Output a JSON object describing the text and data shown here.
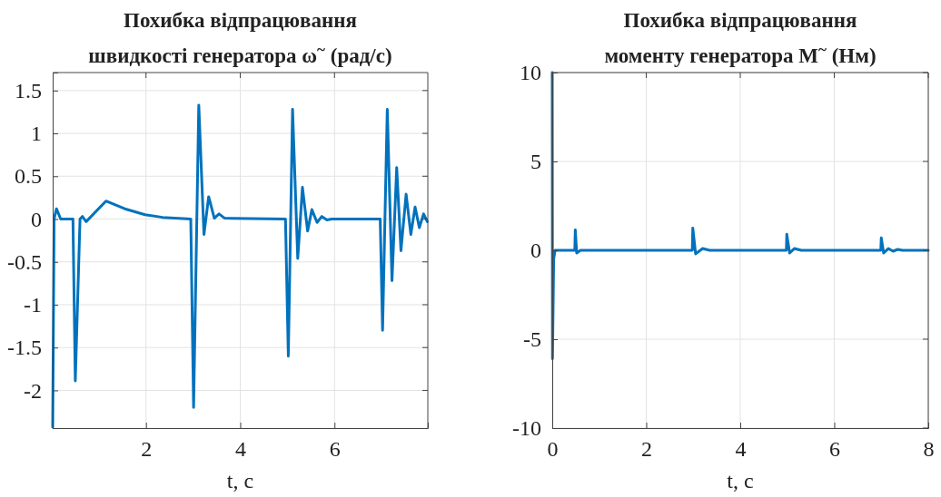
{
  "chart_data": [
    {
      "type": "line",
      "title": "Похибка відпрацювання\nшвидкості генератора ω$^{~}$ (рад/с)",
      "xlabel": "t, c",
      "xlim": [
        0.02,
        7.98
      ],
      "ylim": [
        -2.44,
        1.71
      ],
      "xticks": [
        2,
        4,
        6
      ],
      "yticks": [
        -2,
        -1.5,
        -1,
        -0.5,
        0,
        0.5,
        1,
        1.5
      ],
      "grid": true,
      "series": [
        {
          "color": "#0072bd",
          "x": [
            0.02,
            0.05,
            0.1,
            0.19,
            0.45,
            0.5,
            0.6,
            0.65,
            0.73,
            1.15,
            1.55,
            1.98,
            2.35,
            2.95,
            3.01,
            3.12,
            3.23,
            3.33,
            3.45,
            3.55,
            3.67,
            4.96,
            5.02,
            5.11,
            5.22,
            5.32,
            5.43,
            5.52,
            5.63,
            5.73,
            5.84,
            5.94,
            6.97,
            7.02,
            7.12,
            7.22,
            7.32,
            7.41,
            7.52,
            7.62,
            7.71,
            7.8,
            7.89,
            7.97
          ],
          "values": [
            -2.43,
            0,
            0.12,
            0,
            0,
            -1.89,
            0,
            0.03,
            -0.03,
            0.21,
            0.12,
            0.05,
            0.02,
            0,
            -2.2,
            1.33,
            -0.18,
            0.26,
            0.01,
            0.06,
            0.01,
            0,
            -1.6,
            1.28,
            -0.46,
            0.37,
            -0.14,
            0.11,
            -0.04,
            0.03,
            -0.01,
            0,
            0,
            -1.3,
            1.28,
            -0.72,
            0.6,
            -0.37,
            0.29,
            -0.18,
            0.14,
            -0.1,
            0.06,
            -0.03
          ]
        }
      ]
    },
    {
      "type": "line",
      "title": "Похибка відпрацювання\nмоменту генератора M$^{~}$ (Нм)",
      "xlabel": "t, c",
      "xlim": [
        0,
        8
      ],
      "ylim": [
        -10,
        10
      ],
      "xticks": [
        0,
        2,
        4,
        6,
        8
      ],
      "yticks": [
        -10,
        -5,
        0,
        5,
        10
      ],
      "grid": true,
      "series": [
        {
          "color": "#0072bd",
          "x": [
            0,
            0.005,
            0.03,
            0.06,
            0.48,
            0.49,
            0.52,
            0.6,
            2.98,
            2.99,
            3.05,
            3.2,
            3.35,
            4.98,
            4.99,
            5.05,
            5.15,
            5.3,
            6.99,
            7.0,
            7.05,
            7.15,
            7.25,
            7.35,
            7.45,
            8
          ],
          "values": [
            10,
            -6.1,
            -0.5,
            0,
            0,
            1.15,
            -0.15,
            0,
            0,
            1.25,
            -0.2,
            0.1,
            0,
            0,
            0.9,
            -0.15,
            0.1,
            0,
            0,
            0.7,
            -0.15,
            0.1,
            -0.05,
            0.05,
            0,
            0
          ]
        }
      ]
    }
  ]
}
